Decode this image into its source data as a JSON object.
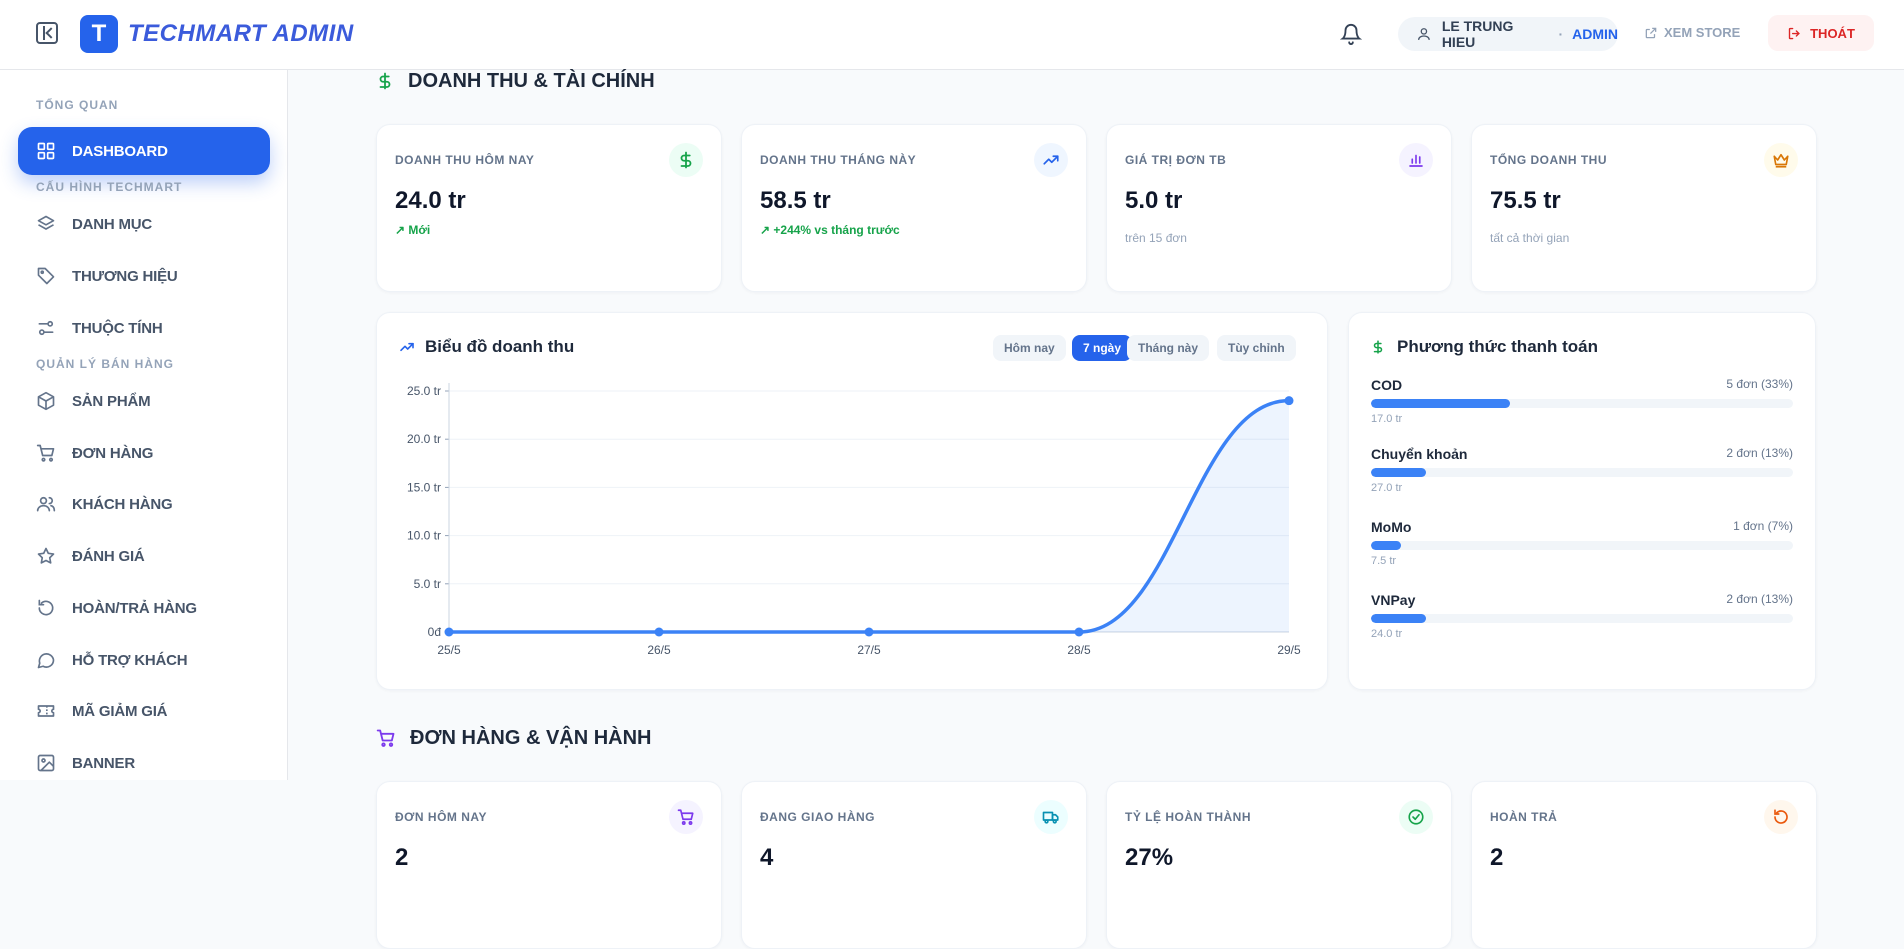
{
  "app": {
    "logo_letter": "T",
    "brand": "TECHMART ADMIN"
  },
  "header": {
    "user_name": "LE TRUNG HIEU",
    "separator": "·",
    "user_role": "ADMIN",
    "store_link": "XEM STORE",
    "logout": "THOÁT"
  },
  "sidebar": {
    "sections": [
      "TỔNG QUAN",
      "CẤU HÌNH TECHMART",
      "QUẢN LÝ BÁN HÀNG"
    ],
    "items": [
      {
        "label": "DASHBOARD",
        "icon": "grid-icon"
      },
      {
        "label": "DANH MỤC",
        "icon": "layers-icon"
      },
      {
        "label": "THƯƠNG HIỆU",
        "icon": "tag-icon"
      },
      {
        "label": "THUỘC TÍNH",
        "icon": "sliders-icon"
      },
      {
        "label": "SẢN PHẨM",
        "icon": "box-icon"
      },
      {
        "label": "ĐƠN HÀNG",
        "icon": "cart-icon"
      },
      {
        "label": "KHÁCH HÀNG",
        "icon": "users-icon"
      },
      {
        "label": "ĐÁNH GIÁ",
        "icon": "star-icon"
      },
      {
        "label": "HOÀN/TRẢ HÀNG",
        "icon": "refund-icon"
      },
      {
        "label": "HỖ TRỢ KHÁCH",
        "icon": "chat-icon"
      },
      {
        "label": "MÃ GIẢM GIÁ",
        "icon": "ticket-icon"
      },
      {
        "label": "BANNER",
        "icon": "image-icon"
      }
    ]
  },
  "finance": {
    "title": "DOANH THU & TÀI CHÍNH",
    "kpis": [
      {
        "label": "DOANH THU HÔM NAY",
        "value": "24.0 tr",
        "sub": "Mới",
        "icon": "dollar-icon"
      },
      {
        "label": "DOANH THU THÁNG NÀY",
        "value": "58.5 tr",
        "sub": "+244% vs tháng trước",
        "icon": "trend-up-icon"
      },
      {
        "label": "GIÁ TRỊ ĐƠN TB",
        "value": "5.0 tr",
        "sub": "trên 15 đơn",
        "icon": "bar-chart-icon"
      },
      {
        "label": "TỔNG DOANH THU",
        "value": "75.5 tr",
        "sub": "tất cả thời gian",
        "icon": "crown-icon"
      }
    ]
  },
  "revenue_chart": {
    "title": "Biểu đồ doanh thu",
    "ranges": [
      "Hôm nay",
      "7 ngày",
      "Tháng này",
      "Tùy chỉnh"
    ],
    "active_range": "7 ngày"
  },
  "chart_data": {
    "type": "area",
    "title": "Biểu đồ doanh thu",
    "x": [
      "25/5",
      "26/5",
      "27/5",
      "28/5",
      "29/5"
    ],
    "series": [
      {
        "values": [
          0,
          0,
          0,
          0,
          24.0
        ]
      }
    ],
    "y_ticks": [
      "0đ",
      "5.0 tr",
      "10.0 tr",
      "15.0 tr",
      "20.0 tr",
      "25.0 tr"
    ],
    "ylim": [
      0,
      25
    ],
    "y_unit": "tr",
    "grid": true,
    "color": "#3b82f6"
  },
  "payment": {
    "title": "Phương thức thanh toán",
    "methods": [
      {
        "name": "COD",
        "count": "5 đơn (33%)",
        "share": 0.33,
        "amount": "17.0 tr"
      },
      {
        "name": "Chuyển khoản",
        "count": "2 đơn (13%)",
        "share": 0.13,
        "amount": "27.0 tr"
      },
      {
        "name": "MoMo",
        "count": "1 đơn (7%)",
        "share": 0.07,
        "amount": "7.5 tr"
      },
      {
        "name": "VNPay",
        "count": "2 đơn (13%)",
        "share": 0.13,
        "amount": "24.0 tr"
      }
    ]
  },
  "orders": {
    "title": "ĐƠN HÀNG & VẬN HÀNH",
    "kpis": [
      {
        "label": "ĐƠN HÔM NAY",
        "value": "2",
        "icon": "cart-icon"
      },
      {
        "label": "ĐANG GIAO HÀNG",
        "value": "4",
        "icon": "truck-icon"
      },
      {
        "label": "TỶ LỆ HOÀN THÀNH",
        "value": "27%",
        "icon": "check-circle-icon"
      },
      {
        "label": "HOÀN TRẢ",
        "value": "2",
        "icon": "refund-icon"
      }
    ]
  },
  "colors": {
    "primary": "#2563eb",
    "success": "#16a34a",
    "danger": "#dc2626"
  }
}
